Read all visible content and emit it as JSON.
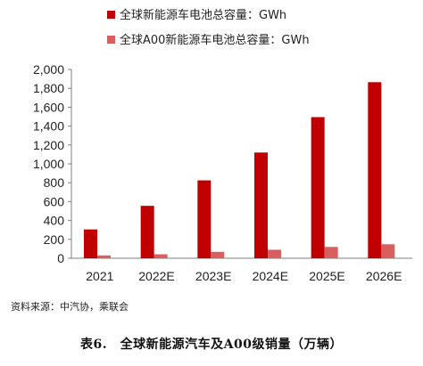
{
  "chart_data": {
    "type": "bar",
    "title": "",
    "xlabel": "",
    "ylabel": "",
    "categories": [
      "2021",
      "2022E",
      "2023E",
      "2024E",
      "2025E",
      "2026E"
    ],
    "series": [
      {
        "name": "全球新能源车电池总容量：GWh",
        "color": "#c00000",
        "values": [
          305,
          555,
          825,
          1120,
          1495,
          1865
        ]
      },
      {
        "name": "全球A00新能源车电池总容量：GWh",
        "color": "#d95f5f",
        "values": [
          30,
          42,
          68,
          90,
          120,
          148
        ]
      }
    ],
    "ylim": [
      0,
      2000
    ],
    "yticks": [
      "0",
      "200",
      "400",
      "600",
      "800",
      "1,000",
      "1,200",
      "1,400",
      "1,600",
      "1,800",
      "2,000"
    ],
    "grid": false,
    "legend_position": "top-left"
  },
  "source_note": "资料来源：中汽协，乘联会",
  "caption": "表6.　全球新能源汽车及A00级销量（万辆）"
}
